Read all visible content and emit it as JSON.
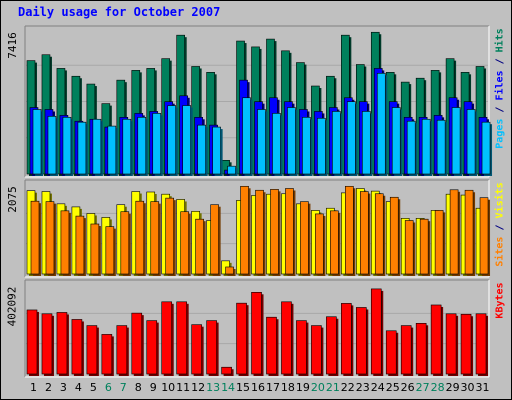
{
  "chart_data": {
    "type": "bar",
    "title": "Daily usage for October 2007",
    "categories": [
      "1",
      "2",
      "3",
      "4",
      "5",
      "6",
      "7",
      "8",
      "9",
      "10",
      "11",
      "12",
      "13",
      "14",
      "15",
      "16",
      "17",
      "18",
      "19",
      "20",
      "21",
      "22",
      "23",
      "24",
      "25",
      "26",
      "27",
      "28",
      "29",
      "30",
      "31"
    ],
    "weekend_days": [
      "6",
      "7",
      "13",
      "14",
      "20",
      "21",
      "27",
      "28"
    ],
    "panels": [
      {
        "name": "hits-panel",
        "ymax_label": "7416",
        "ymax": 7416,
        "side_labels": [
          {
            "text": "Pages",
            "color": "#00c0ff"
          },
          {
            "text": " / ",
            "color": "#000080"
          },
          {
            "text": "Files",
            "color": "#0000ff"
          },
          {
            "text": " / ",
            "color": "#000080"
          },
          {
            "text": "Hits",
            "color": "#00805c"
          }
        ],
        "series": [
          {
            "name": "Hits",
            "color": "#00805c",
            "values": [
              5800,
              6100,
              5400,
              5000,
              4600,
              3600,
              4800,
              5300,
              5400,
              5900,
              7100,
              5500,
              5200,
              700,
              6800,
              6500,
              6900,
              6300,
              5700,
              4500,
              5000,
              7100,
              5600,
              7250,
              5200,
              4700,
              4900,
              5300,
              5900,
              5200,
              5500
            ]
          },
          {
            "name": "Files",
            "color": "#0000ff",
            "values": [
              3400,
              3300,
              3000,
              2700,
              2800,
              2400,
              2900,
              3100,
              3200,
              3700,
              4000,
              2900,
              2500,
              200,
              4800,
              3700,
              3900,
              3700,
              3300,
              3200,
              3400,
              3900,
              3700,
              5400,
              3700,
              2900,
              2900,
              3000,
              3900,
              3700,
              2900
            ]
          },
          {
            "name": "Pages",
            "color": "#00c0ff",
            "values": [
              3300,
              2950,
              2900,
              2650,
              2800,
              2450,
              2800,
              2900,
              3100,
              3500,
              3500,
              2500,
              2400,
              400,
              3900,
              3300,
              3100,
              3400,
              2900,
              2850,
              3200,
              3700,
              3200,
              5150,
              3400,
              2700,
              2800,
              2750,
              3400,
              3300,
              2650
            ]
          }
        ]
      },
      {
        "name": "visits-panel",
        "ymax_label": "2075",
        "ymax": 2075,
        "side_labels": [
          {
            "text": "Sites",
            "color": "#ff8000"
          },
          {
            "text": " / ",
            "color": "#000080"
          },
          {
            "text": "Visits",
            "color": "#ffff00"
          }
        ],
        "series": [
          {
            "name": "Visits",
            "color": "#ffff00",
            "values": [
              1900,
              1880,
              1600,
              1530,
              1380,
              1290,
              1580,
              1880,
              1870,
              1820,
              1700,
              1430,
              1220,
              300,
              1680,
              1790,
              1820,
              1830,
              1600,
              1450,
              1500,
              1850,
              1950,
              1890,
              1650,
              1270,
              1270,
              1450,
              1820,
              1800,
              1500
            ]
          },
          {
            "name": "Sites",
            "color": "#ff8000",
            "values": [
              1660,
              1650,
              1440,
              1320,
              1140,
              1080,
              1420,
              1660,
              1650,
              1730,
              1420,
              1250,
              1580,
              160,
              2000,
              1910,
              1930,
              1950,
              1650,
              1370,
              1440,
              2000,
              1880,
              1830,
              1750,
              1220,
              1250,
              1450,
              1920,
              1910,
              1740
            ]
          }
        ]
      },
      {
        "name": "kbytes-panel",
        "ymax_label": "402092",
        "ymax": 402092,
        "side_labels": [
          {
            "text": "KBytes",
            "color": "#ff0000"
          }
        ],
        "series": [
          {
            "name": "KBytes",
            "color": "#ff0000",
            "values": [
              283000,
              266000,
              272000,
              241000,
              214000,
              175000,
              214000,
              269000,
              236000,
              319000,
              319000,
              218000,
              236000,
              30000,
              313000,
              361000,
              251000,
              319000,
              236000,
              214000,
              253000,
              312000,
              294000,
              376000,
              191000,
              214000,
              224000,
              305000,
              266000,
              264000,
              266000
            ]
          }
        ]
      }
    ]
  }
}
